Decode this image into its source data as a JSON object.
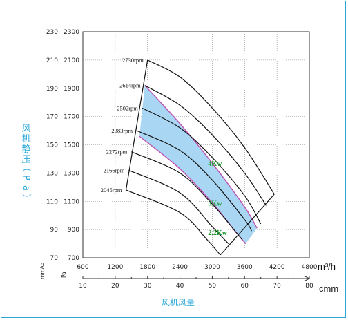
{
  "chart_data": {
    "type": "line",
    "x_axis": {
      "unit": "m³/h",
      "ticks": [
        "600",
        "1200",
        "1800",
        "2400",
        "3000",
        "3600",
        "4200",
        "4800"
      ],
      "range": [
        600,
        4800
      ]
    },
    "x_axis_secondary": {
      "unit": "cmm",
      "ticks": [
        "10",
        "20",
        "30",
        "40",
        "50",
        "60",
        "70",
        "80"
      ]
    },
    "y_axis": {
      "unit": "Pa",
      "ticks": [
        "700",
        "900",
        "1100",
        "1300",
        "1500",
        "1700",
        "1900",
        "2100",
        "2300"
      ],
      "range": [
        700,
        2300
      ]
    },
    "y_axis_secondary": {
      "unit": "mmAq",
      "ticks": [
        "70",
        "90",
        "110",
        "130",
        "150",
        "170",
        "190",
        "210",
        "230"
      ]
    },
    "ylabel": "风机静压（Pa）",
    "xlabel": "风机风量",
    "grid": true,
    "series": [
      {
        "name": "2730rpm",
        "points": [
          [
            1800,
            2100
          ],
          [
            2400,
            1980
          ],
          [
            3000,
            1760
          ],
          [
            3600,
            1480
          ],
          [
            4150,
            1150
          ]
        ]
      },
      {
        "name": "2614rpm",
        "points": [
          [
            1750,
            1920
          ],
          [
            2400,
            1780
          ],
          [
            3000,
            1570
          ],
          [
            3600,
            1300
          ],
          [
            4000,
            1070
          ]
        ]
      },
      {
        "name": "2502rpm",
        "points": [
          [
            1700,
            1760
          ],
          [
            2400,
            1620
          ],
          [
            3000,
            1410
          ],
          [
            3600,
            1140
          ],
          [
            3900,
            940
          ]
        ]
      },
      {
        "name": "2383rpm",
        "points": [
          [
            1600,
            1600
          ],
          [
            2400,
            1460
          ],
          [
            3000,
            1250
          ],
          [
            3600,
            970
          ],
          [
            3730,
            890
          ]
        ]
      },
      {
        "name": "2272rpm",
        "points": [
          [
            1500,
            1450
          ],
          [
            2400,
            1300
          ],
          [
            3000,
            1080
          ],
          [
            3400,
            900
          ],
          [
            3550,
            830
          ]
        ]
      },
      {
        "name": "2166rpm",
        "points": [
          [
            1450,
            1320
          ],
          [
            2400,
            1160
          ],
          [
            3000,
            920
          ],
          [
            3300,
            800
          ]
        ]
      },
      {
        "name": "2045rpm",
        "points": [
          [
            1400,
            1180
          ],
          [
            2400,
            1020
          ],
          [
            2900,
            830
          ],
          [
            3150,
            720
          ]
        ]
      }
    ],
    "envelope_left": [
      [
        1800,
        2100
      ],
      [
        1400,
        1180
      ]
    ],
    "envelope_right": [
      [
        4150,
        1150
      ],
      [
        3150,
        720
      ]
    ],
    "power_bands": [
      {
        "name": "4Kw",
        "points": [
          [
            1750,
            1920
          ],
          [
            2400,
            1650
          ],
          [
            3000,
            1370
          ],
          [
            3600,
            1060
          ],
          [
            3830,
            910
          ]
        ]
      },
      {
        "name": "3Kw",
        "points": [
          [
            1650,
            1560
          ],
          [
            2400,
            1330
          ],
          [
            3000,
            1090
          ],
          [
            3400,
            900
          ],
          [
            3620,
            800
          ]
        ]
      },
      {
        "name": "2.2Kw",
        "points": [
          [
            1500,
            1360
          ],
          [
            2400,
            1110
          ],
          [
            3000,
            880
          ],
          [
            3200,
            790
          ]
        ]
      }
    ],
    "shaded_band": {
      "upper": [
        [
          1750,
          1920
        ],
        [
          2400,
          1650
        ],
        [
          3000,
          1370
        ],
        [
          3600,
          1060
        ],
        [
          3830,
          910
        ]
      ],
      "lower": [
        [
          1650,
          1560
        ],
        [
          2400,
          1330
        ],
        [
          3000,
          1090
        ],
        [
          3400,
          900
        ],
        [
          3620,
          800
        ]
      ],
      "color": "#a9d6f2"
    },
    "colors": {
      "band_fill": "#a9d6f2",
      "band_edge": "#c04fb4",
      "curve": "#111111",
      "label_kw": "#1f9a2f",
      "axis_title": "#29a8d8",
      "frame": "#29a8d8"
    }
  }
}
